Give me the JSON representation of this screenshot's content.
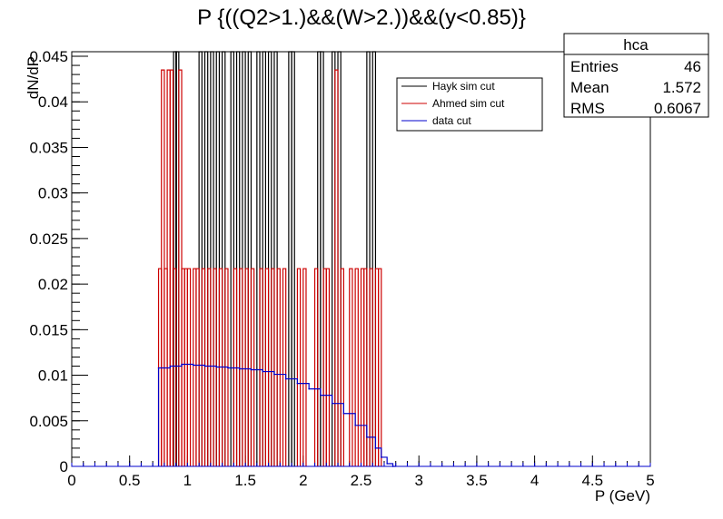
{
  "chart_data": {
    "type": "histogram",
    "title": "P {((Q2>1.)&&(W>2.))&&(y<0.85)}",
    "xlabel": "P (GeV)",
    "ylabel": "dN/dP",
    "xlim": [
      0,
      5
    ],
    "ylim": [
      0,
      0.0455
    ],
    "x_ticks": [
      "0",
      "0.5",
      "1",
      "1.5",
      "2",
      "2.5",
      "3",
      "3.5",
      "4",
      "4.5",
      "5"
    ],
    "y_ticks": [
      "0",
      "0.005",
      "0.01",
      "0.015",
      "0.02",
      "0.025",
      "0.03",
      "0.035",
      "0.04",
      "0.045"
    ],
    "bin_width": 0.025,
    "legend": {
      "placement": "top-right",
      "entries": [
        {
          "label": "Hayk sim cut",
          "color": "#000000"
        },
        {
          "label": "Ahmed sim cut",
          "color": "#cc0000"
        },
        {
          "label": "data cut",
          "color": "#0000cc"
        }
      ]
    },
    "stats_box": {
      "name": "hca",
      "rows": [
        {
          "label": "Entries",
          "value": "46"
        },
        {
          "label": "Mean",
          "value": "1.572"
        },
        {
          "label": "RMS",
          "value": "0.6067"
        }
      ]
    },
    "series": [
      {
        "name": "Hayk sim cut",
        "color": "#000000",
        "spikes": [
          {
            "x": 0.88,
            "y": 0.0455
          },
          {
            "x": 0.9,
            "y": 0.0455
          },
          {
            "x": 1.1,
            "y": 0.0455
          },
          {
            "x": 1.15,
            "y": 0.0455
          },
          {
            "x": 1.2,
            "y": 0.0455
          },
          {
            "x": 1.25,
            "y": 0.0455
          },
          {
            "x": 1.3,
            "y": 0.0455
          },
          {
            "x": 1.375,
            "y": 0.0455
          },
          {
            "x": 1.425,
            "y": 0.0455
          },
          {
            "x": 1.475,
            "y": 0.0455
          },
          {
            "x": 1.525,
            "y": 0.0455
          },
          {
            "x": 1.6,
            "y": 0.0455
          },
          {
            "x": 1.65,
            "y": 0.0455
          },
          {
            "x": 1.7,
            "y": 0.0455
          },
          {
            "x": 1.75,
            "y": 0.0455
          },
          {
            "x": 1.875,
            "y": 0.0455
          },
          {
            "x": 1.9,
            "y": 0.0455
          },
          {
            "x": 2.125,
            "y": 0.0455
          },
          {
            "x": 2.15,
            "y": 0.0455
          },
          {
            "x": 2.25,
            "y": 0.0455
          },
          {
            "x": 2.3,
            "y": 0.0455
          },
          {
            "x": 2.55,
            "y": 0.0455
          },
          {
            "x": 2.6,
            "y": 0.0455
          }
        ]
      },
      {
        "name": "Ahmed sim cut",
        "color": "#cc0000",
        "spikes": [
          {
            "x": 0.75,
            "y": 0.0217
          },
          {
            "x": 0.775,
            "y": 0.0435
          },
          {
            "x": 0.8,
            "y": 0.0217
          },
          {
            "x": 0.825,
            "y": 0.0435
          },
          {
            "x": 0.85,
            "y": 0.0435
          },
          {
            "x": 0.875,
            "y": 0.0217
          },
          {
            "x": 0.925,
            "y": 0.0435
          },
          {
            "x": 0.95,
            "y": 0.0217
          },
          {
            "x": 0.975,
            "y": 0.0217
          },
          {
            "x": 1.0,
            "y": 0.0217
          },
          {
            "x": 1.05,
            "y": 0.0217
          },
          {
            "x": 1.075,
            "y": 0.0217
          },
          {
            "x": 1.125,
            "y": 0.0217
          },
          {
            "x": 1.175,
            "y": 0.0217
          },
          {
            "x": 1.225,
            "y": 0.0217
          },
          {
            "x": 1.275,
            "y": 0.0217
          },
          {
            "x": 1.325,
            "y": 0.0217
          },
          {
            "x": 1.4,
            "y": 0.0217
          },
          {
            "x": 1.45,
            "y": 0.0217
          },
          {
            "x": 1.5,
            "y": 0.0217
          },
          {
            "x": 1.55,
            "y": 0.0217
          },
          {
            "x": 1.625,
            "y": 0.0217
          },
          {
            "x": 1.675,
            "y": 0.0217
          },
          {
            "x": 1.725,
            "y": 0.0217
          },
          {
            "x": 1.775,
            "y": 0.0217
          },
          {
            "x": 1.825,
            "y": 0.0217
          },
          {
            "x": 1.95,
            "y": 0.0217
          },
          {
            "x": 2.0,
            "y": 0.0217
          },
          {
            "x": 2.1,
            "y": 0.0217
          },
          {
            "x": 2.175,
            "y": 0.0217
          },
          {
            "x": 2.2,
            "y": 0.0217
          },
          {
            "x": 2.275,
            "y": 0.0435
          },
          {
            "x": 2.325,
            "y": 0.0217
          },
          {
            "x": 2.4,
            "y": 0.0217
          },
          {
            "x": 2.45,
            "y": 0.0217
          },
          {
            "x": 2.5,
            "y": 0.0217
          },
          {
            "x": 2.525,
            "y": 0.0217
          },
          {
            "x": 2.575,
            "y": 0.0217
          },
          {
            "x": 2.625,
            "y": 0.0217
          },
          {
            "x": 2.65,
            "y": 0.0217
          }
        ]
      },
      {
        "name": "data cut",
        "color": "#0000cc",
        "points": [
          {
            "x": 0.75,
            "y": 0.0108
          },
          {
            "x": 0.85,
            "y": 0.011
          },
          {
            "x": 0.95,
            "y": 0.0112
          },
          {
            "x": 1.05,
            "y": 0.0111
          },
          {
            "x": 1.15,
            "y": 0.011
          },
          {
            "x": 1.25,
            "y": 0.0109
          },
          {
            "x": 1.35,
            "y": 0.0108
          },
          {
            "x": 1.45,
            "y": 0.0107
          },
          {
            "x": 1.55,
            "y": 0.0106
          },
          {
            "x": 1.65,
            "y": 0.0104
          },
          {
            "x": 1.75,
            "y": 0.0101
          },
          {
            "x": 1.85,
            "y": 0.0096
          },
          {
            "x": 1.95,
            "y": 0.0091
          },
          {
            "x": 2.05,
            "y": 0.0085
          },
          {
            "x": 2.15,
            "y": 0.0078
          },
          {
            "x": 2.25,
            "y": 0.0069
          },
          {
            "x": 2.35,
            "y": 0.0058
          },
          {
            "x": 2.45,
            "y": 0.0045
          },
          {
            "x": 2.55,
            "y": 0.0032
          },
          {
            "x": 2.625,
            "y": 0.002
          },
          {
            "x": 2.675,
            "y": 0.001
          },
          {
            "x": 2.725,
            "y": 0.0003
          },
          {
            "x": 2.775,
            "y": 0.0
          }
        ],
        "baseline_markers_from": 0.0,
        "baseline_markers_to": 5.0,
        "baseline_marker_step": 0.1
      }
    ]
  }
}
